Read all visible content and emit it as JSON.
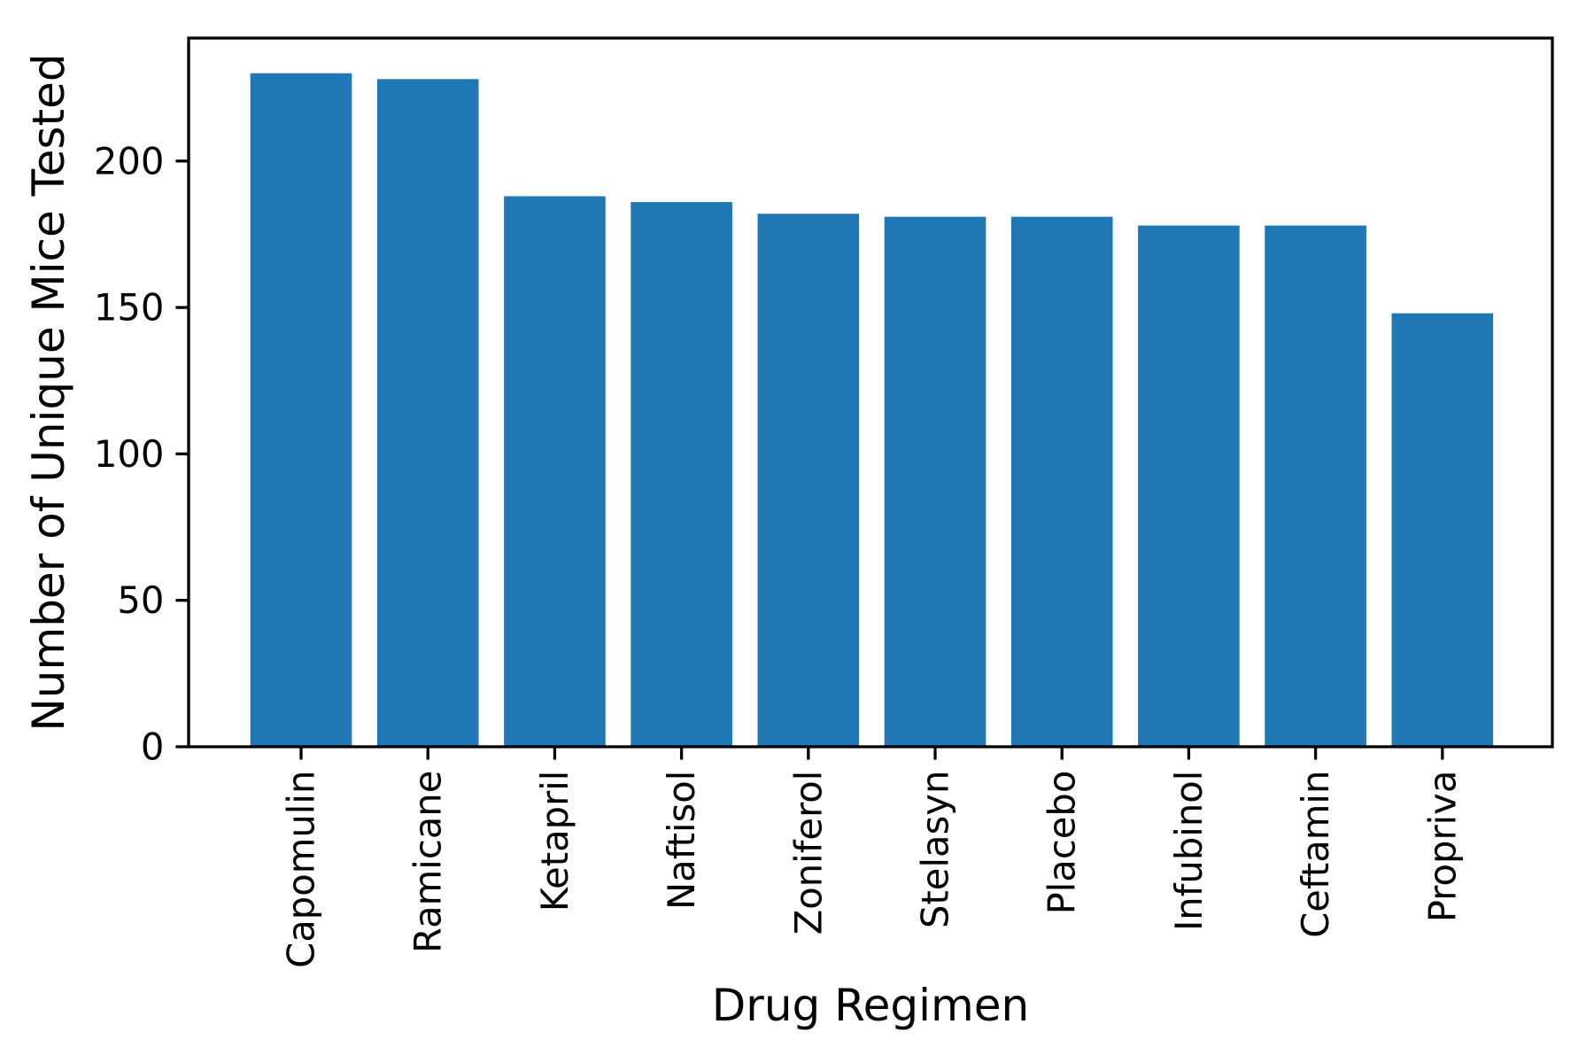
{
  "chart_data": {
    "type": "bar",
    "title": "",
    "xlabel": "Drug Regimen",
    "ylabel": "Number of Unique Mice Tested",
    "categories": [
      "Capomulin",
      "Ramicane",
      "Ketapril",
      "Naftisol",
      "Zoniferol",
      "Stelasyn",
      "Placebo",
      "Infubinol",
      "Ceftamin",
      "Propriva"
    ],
    "values": [
      230,
      228,
      188,
      186,
      182,
      181,
      181,
      178,
      178,
      148
    ],
    "yticks": [
      0,
      50,
      100,
      150,
      200
    ],
    "ylim": [
      0,
      242
    ],
    "x_tick_rotation": 90,
    "grid": false,
    "legend": "none",
    "bar_color": "#1f77b4",
    "axis_color": "#000000",
    "background_color": "#ffffff"
  }
}
